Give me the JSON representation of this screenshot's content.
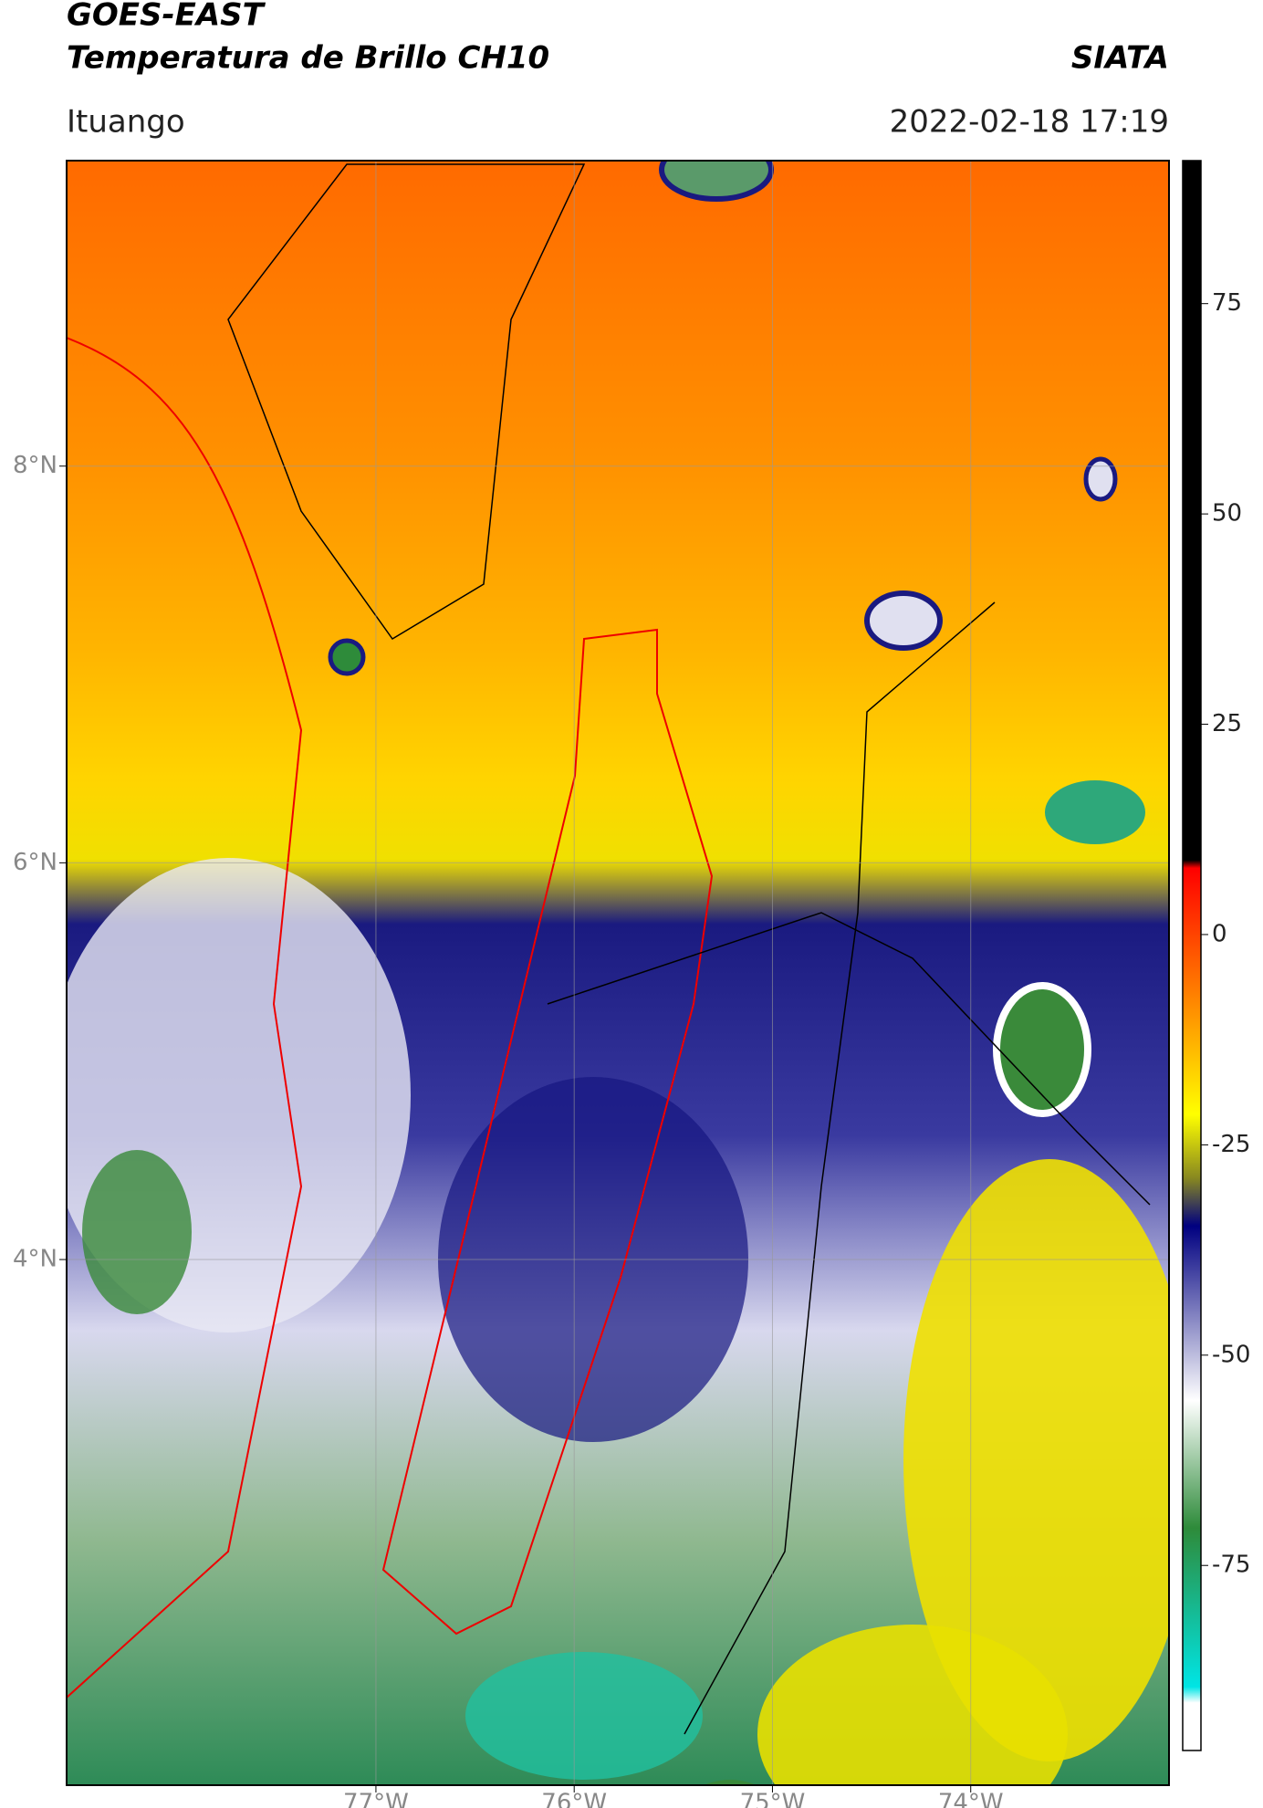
{
  "header": {
    "title": "GOES-EAST",
    "subtitle": "Temperatura de Brillo CH10",
    "source": "SIATA",
    "region": "Ituango",
    "datetime": "2022-02-18 17:19"
  },
  "map": {
    "xlim": [
      -78.56,
      -73.0
    ],
    "ylim": [
      1.35,
      9.54
    ],
    "xticks": [
      {
        "value": -77,
        "label": "77°W"
      },
      {
        "value": -76,
        "label": "76°W"
      },
      {
        "value": -75,
        "label": "75°W"
      },
      {
        "value": -74,
        "label": "74°W"
      }
    ],
    "yticks": [
      {
        "value": 8,
        "label": "8°N"
      },
      {
        "value": 6,
        "label": "6°N"
      },
      {
        "value": 4,
        "label": "4°N"
      }
    ],
    "grid": true
  },
  "colorbar": {
    "lim": [
      -97,
      92
    ],
    "ticks": [
      75,
      50,
      25,
      0,
      -25,
      -50,
      -75
    ]
  }
}
